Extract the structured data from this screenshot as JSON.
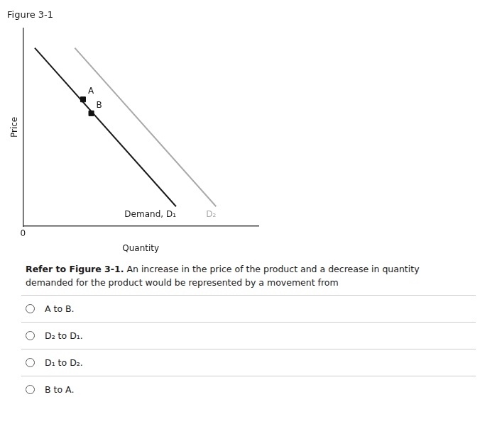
{
  "chart_data": {
    "type": "line",
    "title": "Figure 3-1",
    "xlabel": "Quantity",
    "ylabel": "Price",
    "xlim": [
      0,
      10
    ],
    "ylim": [
      0,
      10
    ],
    "xticks": [
      0
    ],
    "yticks": [],
    "tick_labels": "x",
    "grid": false,
    "series": [
      {
        "name": "Demand, D₁",
        "type": "line",
        "color": "#1a1a1a",
        "x": [
          0.5,
          6.5
        ],
        "values": [
          9.0,
          1.0
        ]
      },
      {
        "name": "D₂",
        "type": "line",
        "color": "#aaaaaa",
        "x": [
          2.2,
          8.2
        ],
        "values": [
          9.0,
          1.0
        ]
      },
      {
        "name": "A",
        "type": "scatter",
        "marker": "square",
        "color": "#111111",
        "x": [
          2.55
        ],
        "values": [
          6.4
        ]
      },
      {
        "name": "B",
        "type": "scatter",
        "marker": "square",
        "color": "#111111",
        "x": [
          2.9
        ],
        "values": [
          5.7
        ]
      }
    ],
    "question": {
      "lead": "Refer to Figure 3-1.",
      "lines": [
        "An increase in the price of the product and a decrease in quantity",
        "demanded for the product would be represented by a movement from"
      ]
    },
    "options": [
      "A to B.",
      "D₂ to D₁.",
      "D₁ to D₂.",
      "B to A."
    ]
  }
}
